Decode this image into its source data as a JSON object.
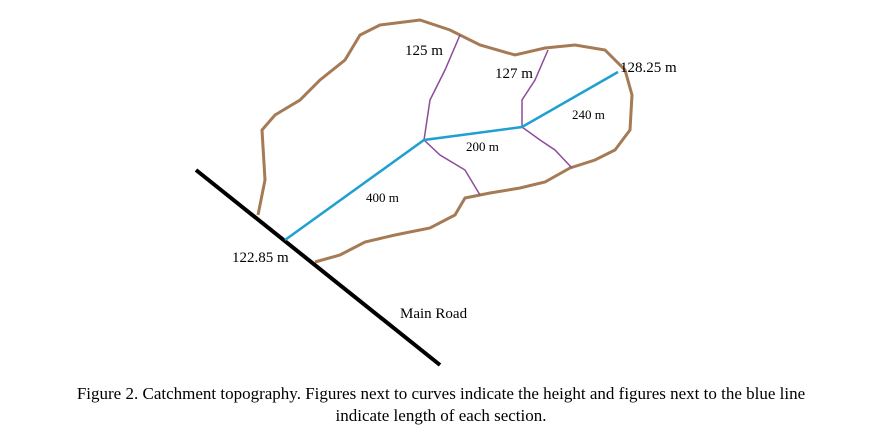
{
  "elevations": {
    "top_left": "125 m",
    "top_middle": "127 m",
    "outlet_upper": "128.25 m",
    "outlet_lower": "122.85 m"
  },
  "lengths": {
    "section_1": "400 m",
    "section_2": "200 m",
    "section_3": "240 m"
  },
  "road_label": "Main Road",
  "caption": [
    "Figure 2. Catchment topography. Figures next to curves indicate the height and figures next to the blue line",
    "indicate length of each section."
  ]
}
